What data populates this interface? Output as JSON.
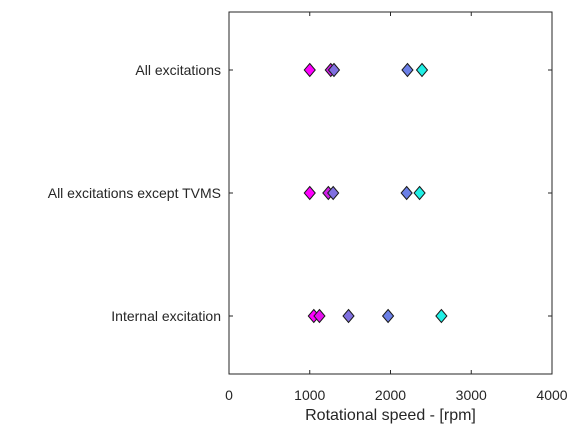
{
  "chart_data": {
    "type": "scatter",
    "title": "",
    "xlabel": "Rotational speed - [rpm]",
    "ylabel": "",
    "xlim": [
      0,
      4000
    ],
    "x_ticks": [
      "0",
      "1000",
      "2000",
      "3000",
      "4000"
    ],
    "x_tick_values": [
      0,
      1000,
      2000,
      3000,
      4000
    ],
    "categories": [
      "Internal excitation",
      "All excitations except TVMS",
      "All excitations"
    ],
    "grid": false,
    "legend": "none",
    "marker": "diamond",
    "points": [
      {
        "category": "All excitations",
        "x": 1000,
        "color": "#ff00ff"
      },
      {
        "category": "All excitations",
        "x": 1260,
        "color": "#d11ee6"
      },
      {
        "category": "All excitations",
        "x": 1300,
        "color": "#8070e0"
      },
      {
        "category": "All excitations",
        "x": 2210,
        "color": "#6b7fe6"
      },
      {
        "category": "All excitations",
        "x": 2390,
        "color": "#20f0e6"
      },
      {
        "category": "All excitations except TVMS",
        "x": 1000,
        "color": "#ff00ff"
      },
      {
        "category": "All excitations except TVMS",
        "x": 1230,
        "color": "#d11ee6"
      },
      {
        "category": "All excitations except TVMS",
        "x": 1290,
        "color": "#8070e0"
      },
      {
        "category": "All excitations except TVMS",
        "x": 2200,
        "color": "#6b7fe6"
      },
      {
        "category": "All excitations except TVMS",
        "x": 2360,
        "color": "#20f0e6"
      },
      {
        "category": "Internal excitation",
        "x": 1050,
        "color": "#ff00ff"
      },
      {
        "category": "Internal excitation",
        "x": 1120,
        "color": "#e60ff0"
      },
      {
        "category": "Internal excitation",
        "x": 1480,
        "color": "#8070e0"
      },
      {
        "category": "Internal excitation",
        "x": 1970,
        "color": "#6b7fe6"
      },
      {
        "category": "Internal excitation",
        "x": 2630,
        "color": "#20f0e6"
      }
    ]
  }
}
